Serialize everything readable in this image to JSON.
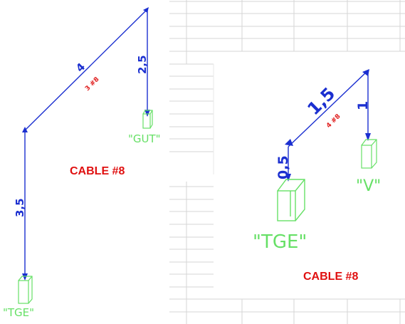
{
  "left": {
    "seg_vertical": "3,5",
    "seg_diagonal": "4",
    "seg_diagonal_sub": "3 #8",
    "seg_drop": "2,5",
    "box_top": "\"GUT\"",
    "box_bottom": "\"TGE\"",
    "cable_label": "CABLE #8"
  },
  "right": {
    "seg_short": "0,5",
    "seg_diagonal": "1,5",
    "seg_diagonal_sub": "4 #8",
    "seg_drop": "1",
    "box_big": "\"TGE\"",
    "box_small": "\"V\"",
    "cable_label": "CABLE #8"
  },
  "colors": {
    "line": "#1b2fd0",
    "green": "#66e066",
    "red": "#e01010",
    "grid": "#d4d4d4"
  }
}
